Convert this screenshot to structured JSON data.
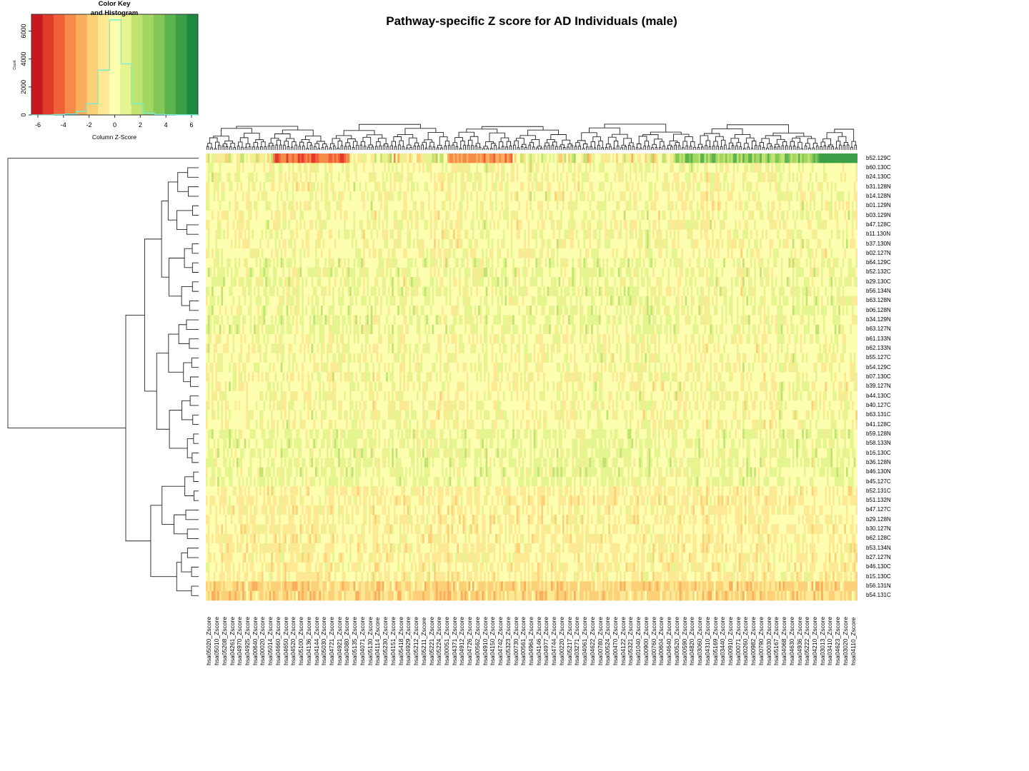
{
  "chart_data": {
    "type": "heatmap",
    "title": "Pathway-specific Z score for AD Individuals (male)",
    "color_key": {
      "title_line1": "Color Key",
      "title_line2": "and Histogram",
      "xlabel": "Column Z-Score",
      "ylabel": "Count",
      "x_ticks": [
        -6,
        -4,
        -2,
        0,
        2,
        4,
        6
      ],
      "y_ticks": [
        0,
        2000,
        4000,
        6000
      ],
      "colors": [
        "#c9171d",
        "#df3a2a",
        "#f26039",
        "#f68a48",
        "#fbae5c",
        "#fcd077",
        "#fde893",
        "#fefeb0",
        "#e4f48f",
        "#c0e371",
        "#a3d762",
        "#84c856",
        "#5db44f",
        "#3a9f46",
        "#1e8a40"
      ],
      "histogram": {
        "bins_x": [
          -6.5,
          -5.6,
          -4.8,
          -3.9,
          -3.0,
          -2.2,
          -1.3,
          -0.4,
          0.5,
          1.3,
          2.2,
          3.1,
          3.9,
          4.8,
          5.7,
          6.5
        ],
        "counts": [
          0,
          0,
          30,
          60,
          250,
          800,
          3200,
          6800,
          3650,
          800,
          130,
          40,
          20,
          10,
          10
        ]
      },
      "histogram_color": "#6ef0d8"
    },
    "rows": [
      "b52.129C",
      "b60.130C",
      "b24.130C",
      "b31.128N",
      "b14.128N",
      "b01.129N",
      "b03.129N",
      "b47.128C",
      "b11.130N",
      "b37.130N",
      "b02.127N",
      "b64.129C",
      "b52.132C",
      "b29.130C",
      "b56.134N",
      "b63.128N",
      "b06.128N",
      "b34.129N",
      "b63.127N",
      "b61.133N",
      "b62.133N",
      "b55.127C",
      "b54.129C",
      "b07.130C",
      "b39.127N",
      "b44.130C",
      "b40.127C",
      "b63.131C",
      "b41.128C",
      "b59.128N",
      "b58.133N",
      "b16.130C",
      "b36.128N",
      "b46.130N",
      "b45.127C",
      "b52.131C",
      "b51.132N",
      "b47.127C",
      "b29.128N",
      "b30.127N",
      "b62.128C",
      "b53.134N",
      "b27.127N",
      "b46.130C",
      "b15.130C",
      "b56.131N",
      "b54.131C"
    ],
    "columns": [
      "hsa05020_Zscore",
      "hsa05010_Zscore",
      "hsa05208_Zscore",
      "hsa04261_Zscore",
      "hsa04970_Zscore",
      "hsa04925_Zscore",
      "hsa00640_Zscore",
      "hsa00020_Zscore",
      "hsa05014_Zscore",
      "hsa04660_Zscore",
      "hsa04650_Zscore",
      "hsa04520_Zscore",
      "hsa05100_Zscore",
      "hsa04136_Zscore",
      "hsa04144_Zscore",
      "hsa05030_Zscore",
      "hsa04721_Zscore",
      "hsa04921_Zscore",
      "hsa04080_Zscore",
      "hsa05135_Zscore",
      "hsa04071_Zscore",
      "hsa05130_Zscore",
      "hsa04114_Zscore",
      "hsa05230_Zscore",
      "hsa04151_Zscore",
      "hsa05418_Zscore",
      "hsa04929_Zscore",
      "hsa05212_Zscore",
      "hsa05211_Zscore",
      "hsa05221_Zscore",
      "hsa05224_Zscore",
      "hsa00051_Zscore",
      "hsa04371_Zscore",
      "hsa04912_Zscore",
      "hsa04726_Zscore",
      "hsa00562_Zscore",
      "hsa04910_Zscore",
      "hsa04150_Zscore",
      "hsa04742_Zscore",
      "hsa05323_Zscore",
      "hsa00730_Zscore",
      "hsa00561_Zscore",
      "hsa04964_Zscore",
      "hsa04146_Zscore",
      "hsa04977_Zscore",
      "hsa04744_Zscore",
      "hsa00220_Zscore",
      "hsa05217_Zscore",
      "hsa03271_Zscore",
      "hsa04061_Zscore",
      "hsa04622_Zscore",
      "hsa00780_Zscore",
      "hsa00524_Zscore",
      "hsa00470_Zscore",
      "hsa04122_Zscore",
      "hsa05321_Zscore",
      "hsa01040_Zscore",
      "hsa00900_Zscore",
      "hsa00760_Zscore",
      "hsa00604_Zscore",
      "hsa04640_Zscore",
      "hsa00520_Zscore",
      "hsa00590_Zscore",
      "hsa04820_Zscore",
      "hsa03060_Zscore",
      "hsa04310_Zscore",
      "hsa05169_Zscore",
      "hsa03440_Zscore",
      "hsa00910_Zscore",
      "hsa00071_Zscore",
      "hsa00260_Zscore",
      "hsa00982_Zscore",
      "hsa00790_Zscore",
      "hsa00030_Zscore",
      "hsa05167_Zscore",
      "hsa04068_Zscore",
      "hsa04630_Zscore",
      "hsa04936_Zscore",
      "hsa05222_Zscore",
      "hsa04210_Zscore",
      "hsa03013_Zscore",
      "hsa03410_Zscore",
      "hsa04623_Zscore",
      "hsa03020_Zscore",
      "hsa04110_Zscore"
    ],
    "n_heatmap_columns": 340,
    "value_range": [
      -6.5,
      6.5
    ],
    "row_dendrogram": true,
    "column_dendrogram": true,
    "notes": "Top row b52.129C shows strong red (negative) block on left and strong green (positive) block on far right; bottom rows b56.131N and b54.131C mostly orange (negative)."
  }
}
